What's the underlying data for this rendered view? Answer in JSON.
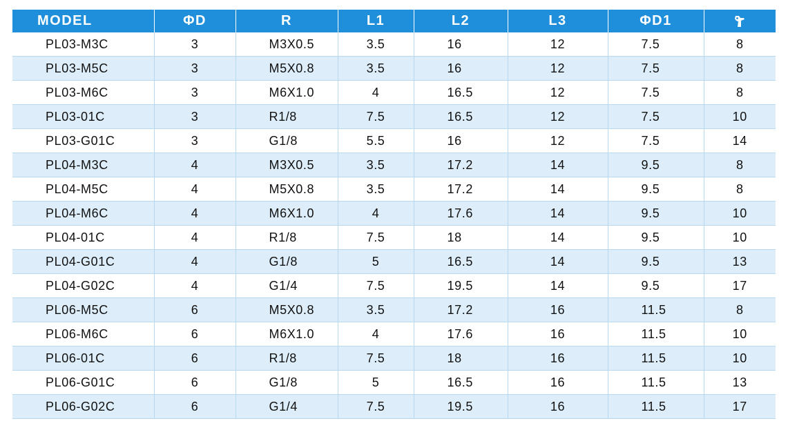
{
  "table": {
    "header": {
      "model": "MODEL",
      "phi_d": "ΦD",
      "r": "R",
      "l1": "L1",
      "l2": "L2",
      "l3": "L3",
      "phi_d1": "ΦD1",
      "torque_icon": "wrench-icon"
    },
    "accent_color": "#1f8fdc",
    "stripe_color": "#ddeefa",
    "rows": [
      [
        "PL03-M3C",
        "3",
        "M3X0.5",
        "3.5",
        "16",
        "12",
        "7.5",
        "8"
      ],
      [
        "PL03-M5C",
        "3",
        "M5X0.8",
        "3.5",
        "16",
        "12",
        "7.5",
        "8"
      ],
      [
        "PL03-M6C",
        "3",
        "M6X1.0",
        "4",
        "16.5",
        "12",
        "7.5",
        "8"
      ],
      [
        "PL03-01C",
        "3",
        "R1/8",
        "7.5",
        "16.5",
        "12",
        "7.5",
        "10"
      ],
      [
        "PL03-G01C",
        "3",
        "G1/8",
        "5.5",
        "16",
        "12",
        "7.5",
        "14"
      ],
      [
        "PL04-M3C",
        "4",
        "M3X0.5",
        "3.5",
        "17.2",
        "14",
        "9.5",
        "8"
      ],
      [
        "PL04-M5C",
        "4",
        "M5X0.8",
        "3.5",
        "17.2",
        "14",
        "9.5",
        "8"
      ],
      [
        "PL04-M6C",
        "4",
        "M6X1.0",
        "4",
        "17.6",
        "14",
        "9.5",
        "10"
      ],
      [
        "PL04-01C",
        "4",
        "R1/8",
        "7.5",
        "18",
        "14",
        "9.5",
        "10"
      ],
      [
        "PL04-G01C",
        "4",
        "G1/8",
        "5",
        "16.5",
        "14",
        "9.5",
        "13"
      ],
      [
        "PL04-G02C",
        "4",
        "G1/4",
        "7.5",
        "19.5",
        "14",
        "9.5",
        "17"
      ],
      [
        "PL06-M5C",
        "6",
        "M5X0.8",
        "3.5",
        "17.2",
        "16",
        "11.5",
        "8"
      ],
      [
        "PL06-M6C",
        "6",
        "M6X1.0",
        "4",
        "17.6",
        "16",
        "11.5",
        "10"
      ],
      [
        "PL06-01C",
        "6",
        "R1/8",
        "7.5",
        "18",
        "16",
        "11.5",
        "10"
      ],
      [
        "PL06-G01C",
        "6",
        "G1/8",
        "5",
        "16.5",
        "16",
        "11.5",
        "13"
      ],
      [
        "PL06-G02C",
        "6",
        "G1/4",
        "7.5",
        "19.5",
        "16",
        "11.5",
        "17"
      ]
    ]
  }
}
